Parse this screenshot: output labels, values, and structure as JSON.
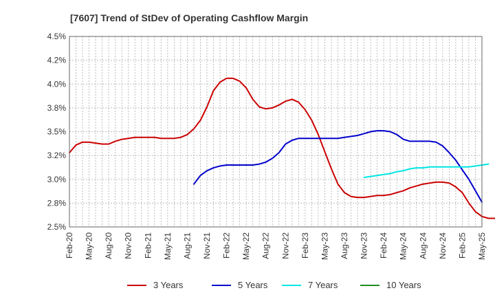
{
  "chart_data": {
    "type": "line",
    "title": "[7607]  Trend of StDev of Operating Cashflow Margin",
    "xlabel": "",
    "ylabel": "",
    "x_tick_labels": [
      "Feb-20",
      "May-20",
      "Aug-20",
      "Nov-20",
      "Feb-21",
      "May-21",
      "Aug-21",
      "Nov-21",
      "Feb-22",
      "May-22",
      "Aug-22",
      "Nov-22",
      "Feb-23",
      "May-23",
      "Aug-23",
      "Nov-23",
      "Feb-24",
      "May-24",
      "Aug-24",
      "Nov-24",
      "Feb-25",
      "May-25"
    ],
    "y_tick_labels": [
      "2.5%",
      "2.8%",
      "3.0%",
      "3.2%",
      "3.5%",
      "3.8%",
      "4.0%",
      "4.2%",
      "4.5%"
    ],
    "ylim": [
      2.5,
      4.5
    ],
    "grid": true,
    "legend_position": "bottom",
    "series": [
      {
        "name": "3 Years",
        "color": "#cc0000",
        "values": [
          3.28,
          3.36,
          3.39,
          3.39,
          3.38,
          3.37,
          3.37,
          3.4,
          3.42,
          3.43,
          3.44,
          3.44,
          3.44,
          3.44,
          3.43,
          3.43,
          3.43,
          3.44,
          3.47,
          3.53,
          3.62,
          3.76,
          3.93,
          4.02,
          4.06,
          4.06,
          4.03,
          3.96,
          3.84,
          3.76,
          3.74,
          3.75,
          3.78,
          3.82,
          3.84,
          3.81,
          3.73,
          3.62,
          3.47,
          3.29,
          3.11,
          2.95,
          2.86,
          2.82,
          2.81,
          2.81,
          2.82,
          2.83,
          2.83,
          2.84,
          2.86,
          2.88,
          2.91,
          2.93,
          2.95,
          2.96,
          2.97,
          2.97,
          2.96,
          2.92,
          2.86,
          2.75,
          2.66,
          2.61,
          2.59,
          2.59,
          2.6,
          2.62
        ]
      },
      {
        "name": "5 Years",
        "color": "#0000cc",
        "values": [
          null,
          null,
          null,
          null,
          null,
          null,
          null,
          null,
          null,
          null,
          null,
          null,
          null,
          null,
          null,
          null,
          null,
          null,
          null,
          2.95,
          3.04,
          3.09,
          3.12,
          3.14,
          3.15,
          3.15,
          3.15,
          3.15,
          3.15,
          3.16,
          3.18,
          3.22,
          3.28,
          3.37,
          3.41,
          3.43,
          3.43,
          3.43,
          3.43,
          3.43,
          3.43,
          3.43,
          3.44,
          3.45,
          3.46,
          3.48,
          3.5,
          3.51,
          3.51,
          3.5,
          3.47,
          3.42,
          3.4,
          3.4,
          3.4,
          3.4,
          3.39,
          3.35,
          3.28,
          3.2,
          3.1,
          3.0,
          2.88,
          2.76
        ]
      },
      {
        "name": "7 Years",
        "color": "#00e5e5",
        "values": [
          null,
          null,
          null,
          null,
          null,
          null,
          null,
          null,
          null,
          null,
          null,
          null,
          null,
          null,
          null,
          null,
          null,
          null,
          null,
          null,
          null,
          null,
          null,
          null,
          null,
          null,
          null,
          null,
          null,
          null,
          null,
          null,
          null,
          null,
          null,
          null,
          null,
          null,
          null,
          null,
          null,
          null,
          null,
          null,
          null,
          3.02,
          3.03,
          3.04,
          3.05,
          3.06,
          3.08,
          3.09,
          3.11,
          3.12,
          3.12,
          3.13,
          3.13,
          3.13,
          3.13,
          3.13,
          3.13,
          3.13,
          3.14,
          3.15,
          3.16
        ]
      },
      {
        "name": "10 Years",
        "color": "#228b22",
        "values": []
      }
    ]
  }
}
